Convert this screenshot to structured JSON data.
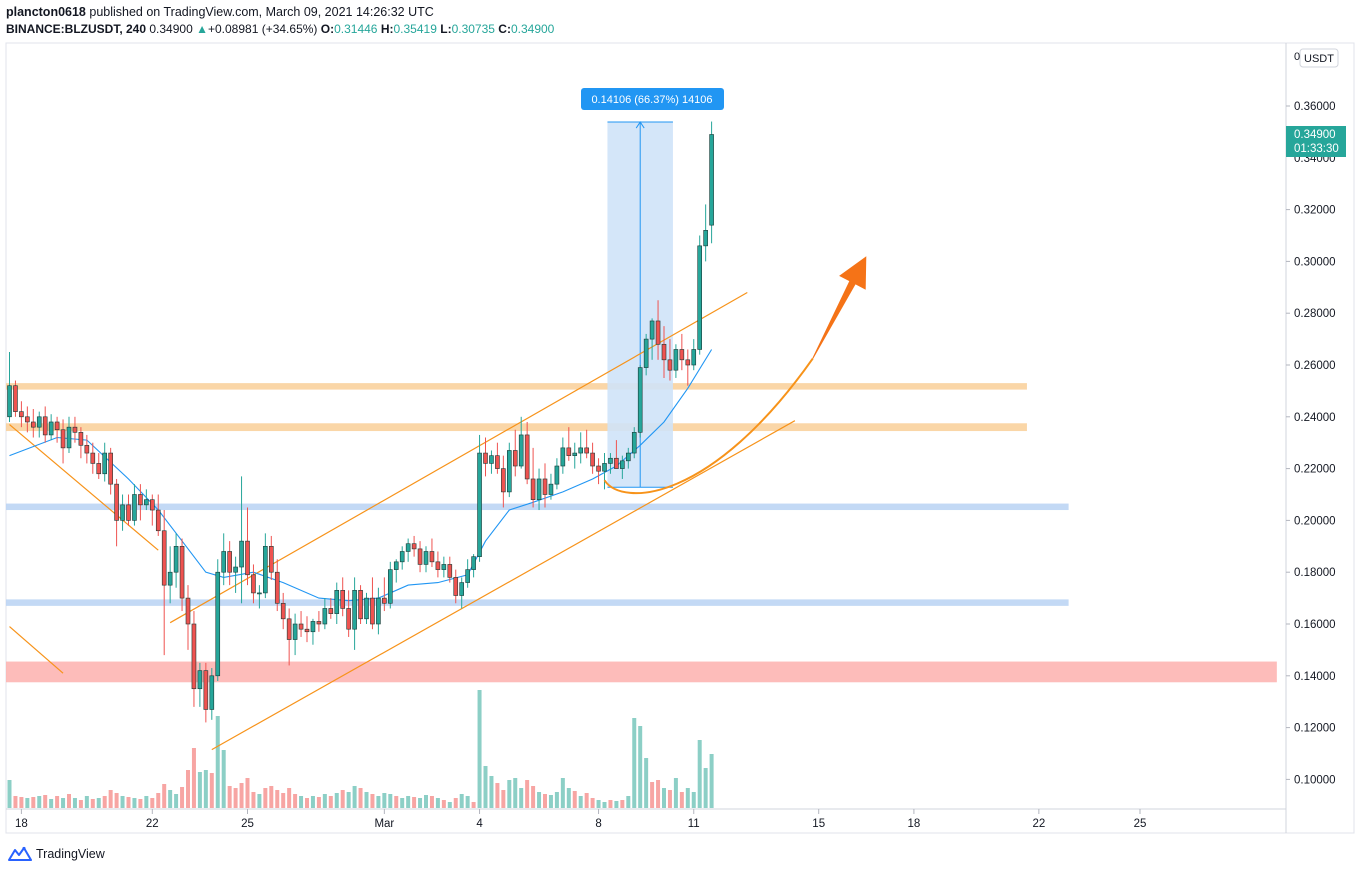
{
  "header": {
    "user": "plancton0618",
    "published_text": " published on TradingView.com, March 09, 2021 14:26:32 UTC",
    "symbol": "BINANCE:BLZUSDT, 240",
    "last": "0.34900",
    "change_arrow": "▲",
    "change": "+0.08981 (+34.65%)",
    "o_label": "O:",
    "o": "0.31446",
    "h_label": "H:",
    "h": "0.35419",
    "l_label": "L:",
    "l": "0.30735",
    "c_label": "C:",
    "c": "0.34900"
  },
  "footer": {
    "brand": "TradingView",
    "logo_icon": "tradingview-logo-icon"
  },
  "chart_data": {
    "type": "candlestick",
    "currency_label": "USDT",
    "price_axis_top_label": "0",
    "y_ticks": [
      "0.36000",
      "0.34000",
      "0.32000",
      "0.30000",
      "0.28000",
      "0.26000",
      "0.24000",
      "0.22000",
      "0.20000",
      "0.18000",
      "0.16000",
      "0.14000",
      "0.12000",
      "0.10000"
    ],
    "y_tick_values": [
      0.36,
      0.34,
      0.32,
      0.3,
      0.28,
      0.26,
      0.24,
      0.22,
      0.2,
      0.18,
      0.16,
      0.14,
      0.12,
      0.1
    ],
    "x_ticks": [
      "18",
      "22",
      "25",
      "Mar",
      "4",
      "8",
      "11",
      "15",
      "18",
      "22",
      "25"
    ],
    "x_tick_bar_index": [
      2,
      24,
      40,
      63,
      79,
      99,
      115,
      136,
      152,
      173,
      190
    ],
    "price_label": "0.34900",
    "countdown": "01:33:30",
    "measure_label": "0.14106 (66.37%) 14106",
    "colors": {
      "up": "#26a69a",
      "down": "#ef5350",
      "ma": "#2196f3",
      "trend": "#f7931a",
      "zone_orange": "#f9cf98",
      "zone_blue": "#b8d2f3",
      "zone_red": "#fdb0ae",
      "measure": "#cfe3f8",
      "arrow": "#f57317"
    },
    "candles": [
      [
        0.24,
        0.265,
        0.238,
        0.252
      ],
      [
        0.252,
        0.254,
        0.24,
        0.242
      ],
      [
        0.242,
        0.246,
        0.236,
        0.24
      ],
      [
        0.24,
        0.244,
        0.234,
        0.238
      ],
      [
        0.238,
        0.243,
        0.232,
        0.236
      ],
      [
        0.236,
        0.242,
        0.232,
        0.24
      ],
      [
        0.24,
        0.244,
        0.23,
        0.233
      ],
      [
        0.233,
        0.241,
        0.231,
        0.238
      ],
      [
        0.238,
        0.24,
        0.23,
        0.235
      ],
      [
        0.235,
        0.239,
        0.222,
        0.228
      ],
      [
        0.228,
        0.24,
        0.226,
        0.236
      ],
      [
        0.236,
        0.24,
        0.23,
        0.234
      ],
      [
        0.234,
        0.236,
        0.224,
        0.229
      ],
      [
        0.229,
        0.233,
        0.222,
        0.226
      ],
      [
        0.226,
        0.23,
        0.218,
        0.222
      ],
      [
        0.222,
        0.226,
        0.216,
        0.218
      ],
      [
        0.218,
        0.23,
        0.215,
        0.226
      ],
      [
        0.226,
        0.228,
        0.21,
        0.214
      ],
      [
        0.214,
        0.216,
        0.19,
        0.2
      ],
      [
        0.2,
        0.21,
        0.196,
        0.206
      ],
      [
        0.206,
        0.21,
        0.198,
        0.2
      ],
      [
        0.2,
        0.214,
        0.198,
        0.21
      ],
      [
        0.21,
        0.214,
        0.2,
        0.206
      ],
      [
        0.206,
        0.212,
        0.204,
        0.208
      ],
      [
        0.208,
        0.21,
        0.198,
        0.204
      ],
      [
        0.204,
        0.21,
        0.194,
        0.196
      ],
      [
        0.196,
        0.204,
        0.148,
        0.175
      ],
      [
        0.175,
        0.19,
        0.168,
        0.18
      ],
      [
        0.18,
        0.195,
        0.174,
        0.19
      ],
      [
        0.19,
        0.193,
        0.165,
        0.17
      ],
      [
        0.17,
        0.175,
        0.15,
        0.16
      ],
      [
        0.16,
        0.165,
        0.128,
        0.135
      ],
      [
        0.135,
        0.145,
        0.128,
        0.142
      ],
      [
        0.142,
        0.145,
        0.122,
        0.127
      ],
      [
        0.127,
        0.143,
        0.123,
        0.14
      ],
      [
        0.14,
        0.185,
        0.138,
        0.18
      ],
      [
        0.18,
        0.195,
        0.175,
        0.188
      ],
      [
        0.188,
        0.192,
        0.175,
        0.18
      ],
      [
        0.18,
        0.186,
        0.172,
        0.182
      ],
      [
        0.182,
        0.217,
        0.168,
        0.192
      ],
      [
        0.192,
        0.205,
        0.175,
        0.179
      ],
      [
        0.179,
        0.183,
        0.168,
        0.172
      ],
      [
        0.172,
        0.175,
        0.166,
        0.172
      ],
      [
        0.172,
        0.195,
        0.17,
        0.19
      ],
      [
        0.19,
        0.194,
        0.177,
        0.18
      ],
      [
        0.18,
        0.185,
        0.165,
        0.168
      ],
      [
        0.168,
        0.172,
        0.158,
        0.162
      ],
      [
        0.162,
        0.166,
        0.144,
        0.154
      ],
      [
        0.154,
        0.164,
        0.148,
        0.16
      ],
      [
        0.16,
        0.165,
        0.155,
        0.158
      ],
      [
        0.158,
        0.163,
        0.153,
        0.157
      ],
      [
        0.157,
        0.162,
        0.152,
        0.161
      ],
      [
        0.161,
        0.165,
        0.157,
        0.16
      ],
      [
        0.16,
        0.17,
        0.158,
        0.166
      ],
      [
        0.166,
        0.17,
        0.162,
        0.164
      ],
      [
        0.164,
        0.176,
        0.16,
        0.173
      ],
      [
        0.173,
        0.178,
        0.163,
        0.166
      ],
      [
        0.166,
        0.173,
        0.155,
        0.158
      ],
      [
        0.158,
        0.178,
        0.15,
        0.173
      ],
      [
        0.173,
        0.175,
        0.16,
        0.162
      ],
      [
        0.162,
        0.172,
        0.16,
        0.17
      ],
      [
        0.17,
        0.178,
        0.158,
        0.16
      ],
      [
        0.16,
        0.174,
        0.156,
        0.17
      ],
      [
        0.17,
        0.178,
        0.165,
        0.168
      ],
      [
        0.168,
        0.184,
        0.166,
        0.181
      ],
      [
        0.181,
        0.185,
        0.176,
        0.184
      ],
      [
        0.184,
        0.19,
        0.181,
        0.188
      ],
      [
        0.188,
        0.193,
        0.184,
        0.191
      ],
      [
        0.191,
        0.194,
        0.186,
        0.189
      ],
      [
        0.189,
        0.192,
        0.18,
        0.183
      ],
      [
        0.183,
        0.19,
        0.18,
        0.188
      ],
      [
        0.188,
        0.193,
        0.182,
        0.184
      ],
      [
        0.184,
        0.188,
        0.178,
        0.181
      ],
      [
        0.181,
        0.186,
        0.178,
        0.183
      ],
      [
        0.183,
        0.186,
        0.176,
        0.178
      ],
      [
        0.178,
        0.181,
        0.168,
        0.171
      ],
      [
        0.171,
        0.178,
        0.166,
        0.176
      ],
      [
        0.176,
        0.185,
        0.174,
        0.181
      ],
      [
        0.181,
        0.187,
        0.178,
        0.186
      ],
      [
        0.186,
        0.233,
        0.184,
        0.226
      ],
      [
        0.226,
        0.232,
        0.217,
        0.222
      ],
      [
        0.222,
        0.227,
        0.218,
        0.225
      ],
      [
        0.225,
        0.23,
        0.218,
        0.22
      ],
      [
        0.22,
        0.225,
        0.205,
        0.211
      ],
      [
        0.211,
        0.23,
        0.209,
        0.227
      ],
      [
        0.227,
        0.235,
        0.217,
        0.221
      ],
      [
        0.221,
        0.24,
        0.22,
        0.233
      ],
      [
        0.233,
        0.238,
        0.214,
        0.216
      ],
      [
        0.216,
        0.228,
        0.205,
        0.208
      ],
      [
        0.208,
        0.22,
        0.204,
        0.216
      ],
      [
        0.216,
        0.222,
        0.205,
        0.21
      ],
      [
        0.21,
        0.218,
        0.208,
        0.214
      ],
      [
        0.214,
        0.224,
        0.212,
        0.221
      ],
      [
        0.221,
        0.232,
        0.218,
        0.228
      ],
      [
        0.228,
        0.236,
        0.223,
        0.225
      ],
      [
        0.225,
        0.23,
        0.22,
        0.226
      ],
      [
        0.226,
        0.234,
        0.222,
        0.228
      ],
      [
        0.228,
        0.235,
        0.224,
        0.226
      ],
      [
        0.226,
        0.23,
        0.218,
        0.221
      ],
      [
        0.221,
        0.224,
        0.214,
        0.219
      ],
      [
        0.219,
        0.226,
        0.212,
        0.222
      ],
      [
        0.222,
        0.226,
        0.218,
        0.224
      ],
      [
        0.224,
        0.231,
        0.22,
        0.22
      ],
      [
        0.22,
        0.225,
        0.216,
        0.223
      ],
      [
        0.223,
        0.228,
        0.22,
        0.226
      ],
      [
        0.226,
        0.236,
        0.224,
        0.234
      ],
      [
        0.234,
        0.26,
        0.232,
        0.259
      ],
      [
        0.259,
        0.272,
        0.256,
        0.27
      ],
      [
        0.27,
        0.278,
        0.262,
        0.277
      ],
      [
        0.277,
        0.285,
        0.262,
        0.268
      ],
      [
        0.268,
        0.275,
        0.255,
        0.262
      ],
      [
        0.262,
        0.27,
        0.254,
        0.258
      ],
      [
        0.258,
        0.268,
        0.255,
        0.266
      ],
      [
        0.266,
        0.272,
        0.258,
        0.262
      ],
      [
        0.262,
        0.266,
        0.252,
        0.26
      ],
      [
        0.26,
        0.27,
        0.258,
        0.266
      ],
      [
        0.266,
        0.31,
        0.264,
        0.306
      ],
      [
        0.306,
        0.322,
        0.3,
        0.312
      ],
      [
        0.314,
        0.354,
        0.307,
        0.349
      ]
    ],
    "ma": [
      [
        0,
        0.225
      ],
      [
        8,
        0.232
      ],
      [
        13,
        0.231
      ],
      [
        20,
        0.216
      ],
      [
        25,
        0.204
      ],
      [
        29,
        0.192
      ],
      [
        33,
        0.18
      ],
      [
        36,
        0.178
      ],
      [
        41,
        0.18
      ],
      [
        46,
        0.176
      ],
      [
        52,
        0.17
      ],
      [
        57,
        0.169
      ],
      [
        62,
        0.17
      ],
      [
        67,
        0.175
      ],
      [
        72,
        0.176
      ],
      [
        77,
        0.179
      ],
      [
        80,
        0.192
      ],
      [
        84,
        0.204
      ],
      [
        88,
        0.207
      ],
      [
        93,
        0.211
      ],
      [
        98,
        0.216
      ],
      [
        102,
        0.221
      ],
      [
        106,
        0.229
      ],
      [
        110,
        0.238
      ],
      [
        114,
        0.251
      ],
      [
        118,
        0.266
      ]
    ],
    "volumes": [
      [
        0,
        28,
        "u"
      ],
      [
        1,
        12,
        "d"
      ],
      [
        2,
        11,
        "d"
      ],
      [
        3,
        10,
        "u"
      ],
      [
        4,
        11,
        "d"
      ],
      [
        5,
        12,
        "u"
      ],
      [
        6,
        13,
        "d"
      ],
      [
        7,
        9,
        "u"
      ],
      [
        8,
        12,
        "d"
      ],
      [
        9,
        10,
        "u"
      ],
      [
        10,
        14,
        "d"
      ],
      [
        11,
        10,
        "u"
      ],
      [
        12,
        8,
        "d"
      ],
      [
        13,
        12,
        "u"
      ],
      [
        14,
        9,
        "d"
      ],
      [
        15,
        10,
        "u"
      ],
      [
        16,
        12,
        "d"
      ],
      [
        17,
        18,
        "d"
      ],
      [
        18,
        15,
        "d"
      ],
      [
        19,
        12,
        "u"
      ],
      [
        20,
        11,
        "d"
      ],
      [
        21,
        10,
        "u"
      ],
      [
        22,
        9,
        "d"
      ],
      [
        23,
        12,
        "u"
      ],
      [
        24,
        10,
        "d"
      ],
      [
        25,
        15,
        "d"
      ],
      [
        26,
        24,
        "d"
      ],
      [
        27,
        18,
        "u"
      ],
      [
        28,
        14,
        "u"
      ],
      [
        29,
        21,
        "d"
      ],
      [
        30,
        38,
        "d"
      ],
      [
        31,
        60,
        "d"
      ],
      [
        32,
        36,
        "u"
      ],
      [
        33,
        38,
        "u"
      ],
      [
        34,
        35,
        "d"
      ],
      [
        35,
        92,
        "u"
      ],
      [
        36,
        58,
        "u"
      ],
      [
        37,
        22,
        "d"
      ],
      [
        38,
        20,
        "d"
      ],
      [
        39,
        25,
        "d"
      ],
      [
        40,
        30,
        "d"
      ],
      [
        41,
        16,
        "d"
      ],
      [
        42,
        14,
        "u"
      ],
      [
        43,
        20,
        "d"
      ],
      [
        44,
        22,
        "d"
      ],
      [
        45,
        18,
        "d"
      ],
      [
        46,
        15,
        "d"
      ],
      [
        47,
        20,
        "d"
      ],
      [
        48,
        14,
        "d"
      ],
      [
        49,
        12,
        "u"
      ],
      [
        50,
        10,
        "d"
      ],
      [
        51,
        12,
        "u"
      ],
      [
        52,
        11,
        "d"
      ],
      [
        53,
        14,
        "u"
      ],
      [
        54,
        12,
        "d"
      ],
      [
        55,
        15,
        "u"
      ],
      [
        56,
        18,
        "d"
      ],
      [
        57,
        16,
        "u"
      ],
      [
        58,
        22,
        "u"
      ],
      [
        59,
        20,
        "d"
      ],
      [
        60,
        16,
        "u"
      ],
      [
        61,
        14,
        "d"
      ],
      [
        62,
        12,
        "u"
      ],
      [
        63,
        15,
        "u"
      ],
      [
        64,
        14,
        "u"
      ],
      [
        65,
        12,
        "d"
      ],
      [
        66,
        10,
        "u"
      ],
      [
        67,
        12,
        "u"
      ],
      [
        68,
        11,
        "d"
      ],
      [
        69,
        10,
        "u"
      ],
      [
        70,
        13,
        "u"
      ],
      [
        71,
        12,
        "d"
      ],
      [
        72,
        10,
        "u"
      ],
      [
        73,
        8,
        "d"
      ],
      [
        74,
        6,
        "u"
      ],
      [
        75,
        10,
        "d"
      ],
      [
        76,
        14,
        "u"
      ],
      [
        77,
        12,
        "u"
      ],
      [
        78,
        6,
        "d"
      ],
      [
        79,
        118,
        "u"
      ],
      [
        80,
        42,
        "u"
      ],
      [
        81,
        32,
        "u"
      ],
      [
        82,
        25,
        "d"
      ],
      [
        83,
        18,
        "d"
      ],
      [
        84,
        28,
        "u"
      ],
      [
        85,
        30,
        "u"
      ],
      [
        86,
        20,
        "u"
      ],
      [
        87,
        28,
        "d"
      ],
      [
        88,
        22,
        "d"
      ],
      [
        89,
        16,
        "u"
      ],
      [
        90,
        14,
        "d"
      ],
      [
        91,
        13,
        "u"
      ],
      [
        92,
        16,
        "u"
      ],
      [
        93,
        30,
        "u"
      ],
      [
        94,
        20,
        "u"
      ],
      [
        95,
        17,
        "d"
      ],
      [
        96,
        12,
        "u"
      ],
      [
        97,
        15,
        "d"
      ],
      [
        98,
        10,
        "d"
      ],
      [
        99,
        8,
        "u"
      ],
      [
        100,
        6,
        "u"
      ],
      [
        101,
        8,
        "d"
      ],
      [
        102,
        7,
        "u"
      ],
      [
        103,
        8,
        "d"
      ],
      [
        104,
        12,
        "u"
      ],
      [
        105,
        90,
        "u"
      ],
      [
        106,
        82,
        "u"
      ],
      [
        107,
        50,
        "u"
      ],
      [
        108,
        26,
        "d"
      ],
      [
        109,
        28,
        "d"
      ],
      [
        110,
        20,
        "u"
      ],
      [
        111,
        18,
        "d"
      ],
      [
        112,
        30,
        "u"
      ],
      [
        113,
        16,
        "d"
      ],
      [
        114,
        20,
        "u"
      ],
      [
        115,
        16,
        "u"
      ],
      [
        116,
        68,
        "u"
      ],
      [
        117,
        40,
        "u"
      ],
      [
        118,
        54,
        "u"
      ]
    ],
    "zones": [
      {
        "low": 0.2505,
        "high": 0.253,
        "color": "zone_orange",
        "end": 171
      },
      {
        "low": 0.2345,
        "high": 0.2375,
        "color": "zone_orange",
        "end": 171
      },
      {
        "low": 0.204,
        "high": 0.2065,
        "color": "zone_blue",
        "end": 178
      },
      {
        "low": 0.167,
        "high": 0.1695,
        "color": "zone_blue",
        "end": 178
      },
      {
        "low": 0.1375,
        "high": 0.1455,
        "color": "zone_red",
        "end": 213
      }
    ],
    "trendlines": [
      {
        "x1": 0,
        "y1": 0.237,
        "x2": 25,
        "y2": 0.1885
      },
      {
        "x1": 0,
        "y1": 0.159,
        "x2": 9,
        "y2": 0.141
      },
      {
        "x1": 27,
        "y1": 0.1605,
        "x2": 124,
        "y2": 0.288
      },
      {
        "x1": 34,
        "y1": 0.1115,
        "x2": 132,
        "y2": 0.2385
      }
    ],
    "measure_box": {
      "x1": 101,
      "x2": 111,
      "y1": 0.2128,
      "y2": 0.3538
    },
    "curve": {
      "x0": 100,
      "y0": 0.2155,
      "cx1": 103,
      "cy1": 0.205,
      "cx2": 118,
      "cy2": 0.207,
      "x1": 135,
      "y1": 0.2625
    },
    "arrow": {
      "x1": 135,
      "y1": 0.2625,
      "x2": 144,
      "y2": 0.302
    }
  }
}
